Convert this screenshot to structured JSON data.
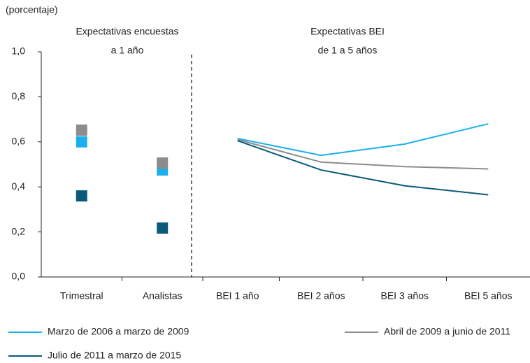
{
  "chart_data": [
    {
      "type": "scatter",
      "ylabel": "(porcentaje)",
      "title": [
        "Expectativas encuestas",
        "a 1 año"
      ],
      "categories": [
        "Trimestral",
        "Analistas"
      ],
      "series": [
        {
          "name": "Marzo de 2006 a marzo de 2009",
          "color": "#1ab0ec",
          "values": [
            0.6,
            0.475
          ]
        },
        {
          "name": "Abril de 2009 a junio de 2011",
          "color": "#8c8c8c",
          "values": [
            0.652,
            0.506
          ]
        },
        {
          "name": "Julio de 2011 a marzo de 2015",
          "color": "#0b5a7a",
          "values": [
            0.36,
            0.217
          ]
        }
      ],
      "ylim": [
        0,
        1
      ],
      "yticks": [
        {
          "value": 0,
          "label": "0,0"
        },
        {
          "value": 0.2,
          "label": "0,2"
        },
        {
          "value": 0.4,
          "label": "0,4"
        },
        {
          "value": 0.6,
          "label": "0,6"
        },
        {
          "value": 0.8,
          "label": "0,8"
        },
        {
          "value": 1,
          "label": "1,0"
        }
      ]
    },
    {
      "type": "line",
      "title": [
        "Expectativas BEI",
        "de 1 a 5 años"
      ],
      "categories": [
        "BEI 1 año",
        "BEI 2 años",
        "BEI 3 años",
        "BEI 5 años"
      ],
      "series": [
        {
          "color": "#1ab0ec",
          "values": [
            0.615,
            0.54,
            0.59,
            0.68
          ]
        },
        {
          "color": "#8c8c8c",
          "values": [
            0.61,
            0.51,
            0.49,
            0.48
          ]
        },
        {
          "color": "#0b5a7a",
          "values": [
            0.605,
            0.475,
            0.405,
            0.365
          ]
        }
      ]
    }
  ]
}
